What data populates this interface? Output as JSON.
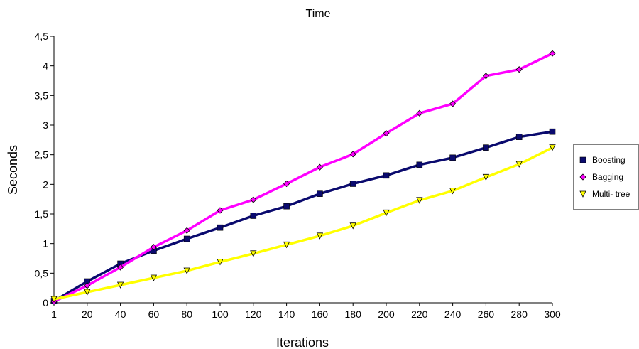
{
  "chart_data": {
    "type": "line",
    "title": "Time",
    "xlabel": "Iterations",
    "ylabel": "Seconds",
    "categories": [
      "1",
      "20",
      "40",
      "60",
      "80",
      "100",
      "120",
      "140",
      "160",
      "180",
      "200",
      "220",
      "240",
      "260",
      "280",
      "300"
    ],
    "ylim": [
      0,
      4.5
    ],
    "yticks": [
      "0",
      "0,5",
      "1",
      "1,5",
      "2",
      "2,5",
      "3",
      "3,5",
      "4",
      "4,5"
    ],
    "grid": false,
    "legend_position": "right",
    "series": [
      {
        "name": "Boosting",
        "color": "#0a0a6e",
        "marker": "square",
        "values": [
          0.03,
          0.36,
          0.66,
          0.88,
          1.08,
          1.27,
          1.47,
          1.63,
          1.84,
          2.01,
          2.15,
          2.33,
          2.45,
          2.62,
          2.8,
          2.89
        ]
      },
      {
        "name": "Bagging",
        "color": "#ff00ff",
        "marker": "diamond",
        "values": [
          0.02,
          0.29,
          0.6,
          0.94,
          1.22,
          1.56,
          1.74,
          2.01,
          2.29,
          2.51,
          2.86,
          3.2,
          3.36,
          3.83,
          3.94,
          4.21
        ]
      },
      {
        "name": "Multi- tree",
        "color": "#ffff00",
        "marker": "triangle-down",
        "values": [
          0.06,
          0.18,
          0.3,
          0.42,
          0.54,
          0.69,
          0.83,
          0.98,
          1.13,
          1.3,
          1.52,
          1.73,
          1.89,
          2.12,
          2.34,
          2.62
        ]
      }
    ]
  }
}
